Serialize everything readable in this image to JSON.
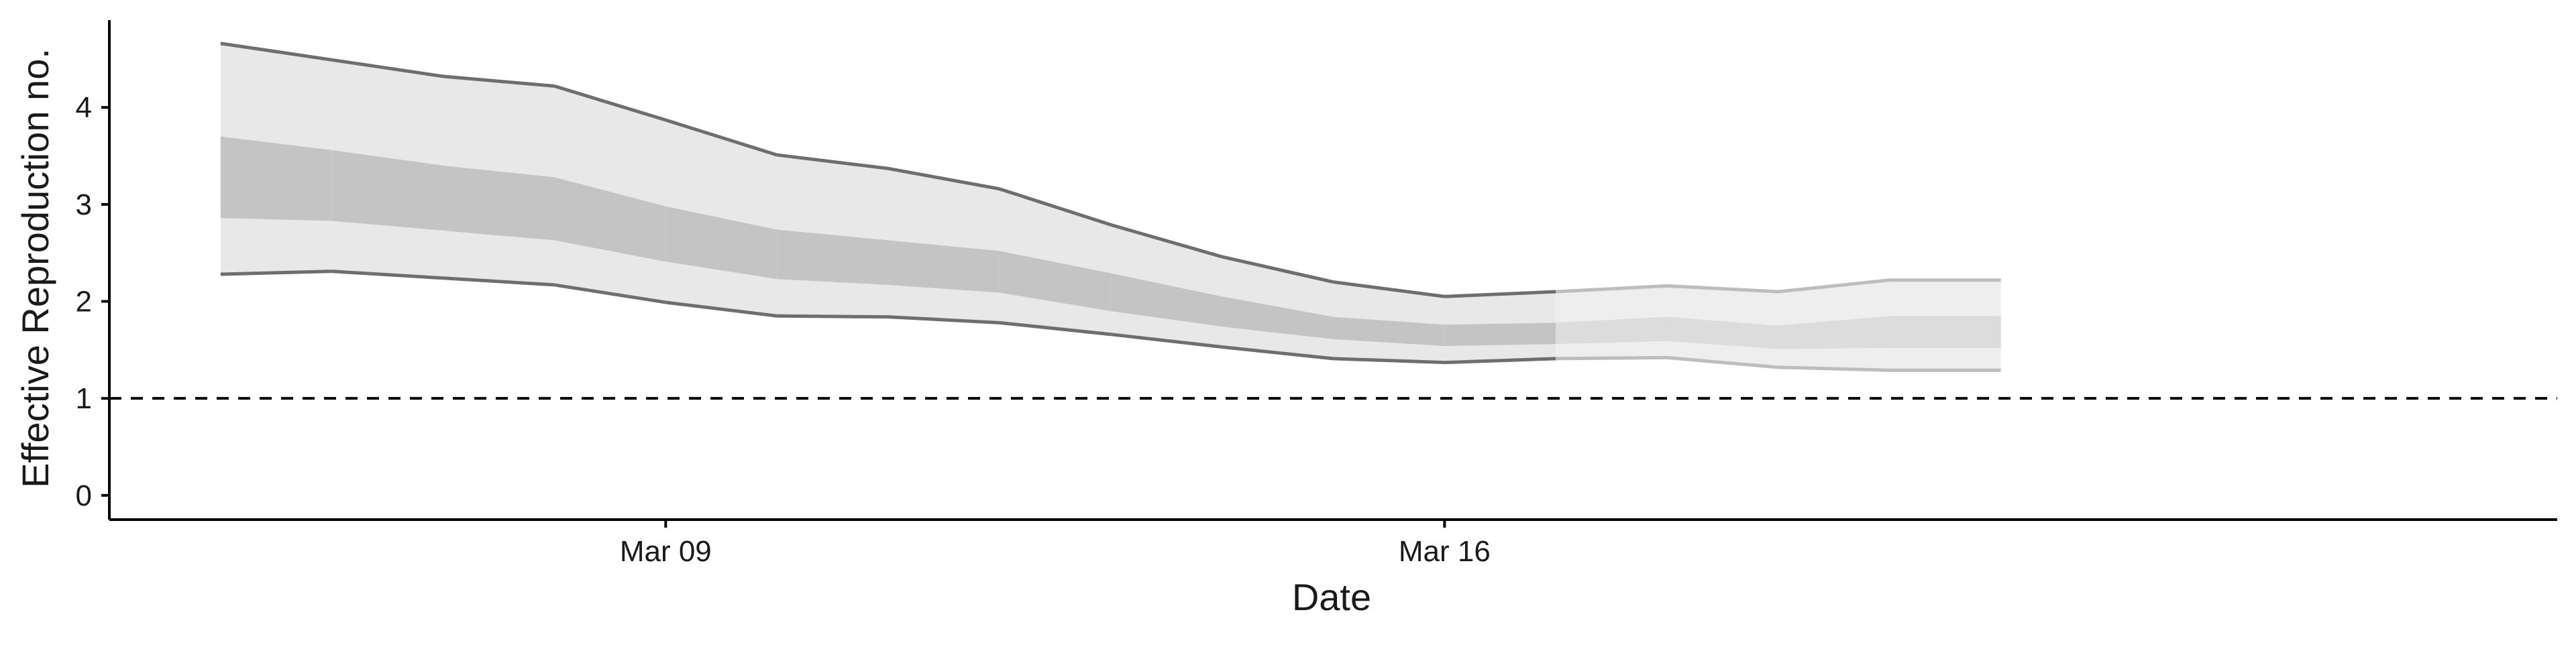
{
  "chart_data": {
    "type": "area",
    "title": "",
    "xlabel": "Date",
    "ylabel": "Effective Reproduction no.",
    "x_type": "date",
    "xlim": [
      "2020-03-04",
      "2020-03-26"
    ],
    "ylim": [
      -0.25,
      4.9
    ],
    "x_ticks": [
      {
        "value": "2020-03-09",
        "label": "Mar 09"
      },
      {
        "value": "2020-03-16",
        "label": "Mar 16"
      }
    ],
    "y_ticks": [
      0,
      1,
      2,
      3,
      4
    ],
    "y_tick_labels": [
      "0",
      "1",
      "2",
      "3",
      "4"
    ],
    "reference_line": {
      "y": 1,
      "style": "dashed",
      "color": "#000000"
    },
    "grid": false,
    "legend": "none",
    "colors": {
      "outer_band": "#e8e8e8",
      "inner_band": "#c4c4c4",
      "outer_band_late": "#eeeeee",
      "inner_band_late": "#dcdcdc",
      "bound_line": "#6e6e6e",
      "bound_line_late": "#bdbdbd",
      "axis": "#000000"
    },
    "series": [
      {
        "x": [
          "2020-03-05",
          "2020-03-06",
          "2020-03-07",
          "2020-03-08",
          "2020-03-09",
          "2020-03-10",
          "2020-03-11",
          "2020-03-12",
          "2020-03-13",
          "2020-03-14",
          "2020-03-15",
          "2020-03-16",
          "2020-03-17",
          "2020-03-18",
          "2020-03-19",
          "2020-03-20",
          "2020-03-21"
        ],
        "outer_upper": [
          4.66,
          4.49,
          4.32,
          4.22,
          3.87,
          3.51,
          3.37,
          3.16,
          2.79,
          2.46,
          2.2,
          2.05,
          2.1,
          2.16,
          2.1,
          2.22,
          2.22
        ],
        "inner_upper": [
          3.7,
          3.56,
          3.4,
          3.28,
          2.98,
          2.74,
          2.63,
          2.52,
          2.29,
          2.05,
          1.84,
          1.76,
          1.78,
          1.84,
          1.75,
          1.85,
          1.85
        ],
        "inner_lower": [
          2.86,
          2.83,
          2.73,
          2.63,
          2.41,
          2.23,
          2.17,
          2.09,
          1.9,
          1.74,
          1.61,
          1.54,
          1.56,
          1.59,
          1.51,
          1.52,
          1.52
        ],
        "outer_lower": [
          2.28,
          2.31,
          2.24,
          2.17,
          1.99,
          1.85,
          1.84,
          1.78,
          1.66,
          1.53,
          1.41,
          1.37,
          1.41,
          1.42,
          1.32,
          1.29,
          1.29
        ],
        "estimate_type_from": "2020-03-17"
      }
    ]
  }
}
